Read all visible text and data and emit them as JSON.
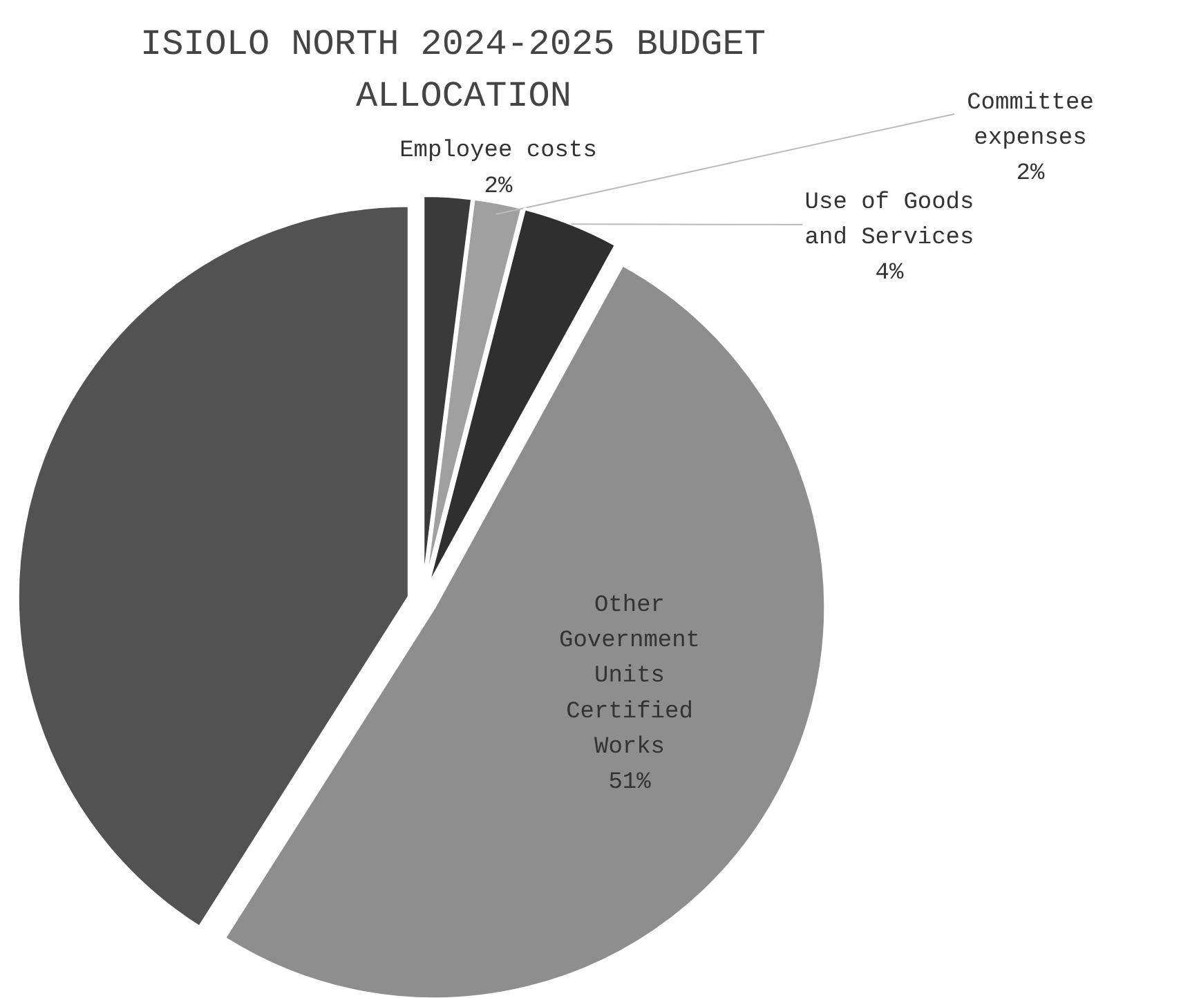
{
  "chart_data": {
    "type": "pie",
    "title": "ISIOLO NORTH  2024-2025 BUDGET ALLOCATION",
    "categories": [
      "Employee costs",
      "Committee expenses",
      "Use of Goods and Services",
      "Other Government Units Certified Works",
      null
    ],
    "values": [
      2,
      2,
      4,
      51,
      41
    ],
    "value_labels": [
      "2%",
      "2%",
      "4%",
      "51%",
      null
    ],
    "colors": [
      "#3a3a3a",
      "#a0a0a0",
      "#2f2f2f",
      "#8e8e8e",
      "#525252"
    ]
  }
}
